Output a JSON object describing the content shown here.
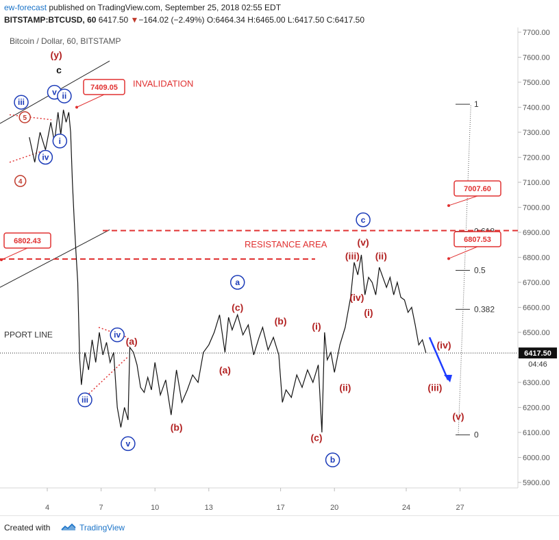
{
  "header": {
    "author": "ew-forecast",
    "published": " published on TradingView.com, September 25, 2018 02:55 EDT",
    "symbol": "BITSTAMP:BTCUSD, 60",
    "last": "6417.50",
    "arrow": "▼",
    "change": "−164.02 (−2.49%)",
    "ohlc": "O:6464.34 H:6465.00 L:6417.50 C:6417.50"
  },
  "footer": {
    "created": "Created with",
    "brand": "TradingView"
  },
  "chart_data": {
    "type": "line",
    "title": "Bitcoin / Dollar, 60, BITSTAMP",
    "xlabel": "",
    "ylabel": "",
    "ylim": [
      5860,
      7720
    ],
    "y_ticks": [
      "5900.00",
      "6000.00",
      "6100.00",
      "6200.00",
      "6300.00",
      "6400.00",
      "6500.00",
      "6600.00",
      "6700.00",
      "6800.00",
      "6900.00",
      "7000.00",
      "7100.00",
      "7200.00",
      "7300.00",
      "7400.00",
      "7500.00",
      "7600.00",
      "7700.00"
    ],
    "x_ticks": [
      "4",
      "7",
      "10",
      "13",
      "17",
      "20",
      "24",
      "27"
    ],
    "grid": false,
    "last_price_label": "6417.50",
    "countdown": "04:46",
    "series": [
      {
        "name": "",
        "x": [
          3.0,
          3.3,
          3.6,
          3.9,
          4.2,
          4.4,
          4.6,
          4.75,
          4.9,
          5.05,
          5.2,
          5.3,
          5.4,
          5.5,
          5.6,
          5.7,
          5.8,
          5.9,
          6.1,
          6.3,
          6.5,
          6.7,
          6.9,
          7.1,
          7.3,
          7.5,
          7.7,
          7.9,
          8.1,
          8.3,
          8.5,
          8.6,
          8.8,
          9.0,
          9.2,
          9.4,
          9.6,
          9.8,
          10.0,
          10.3,
          10.6,
          10.9,
          11.2,
          11.5,
          11.8,
          12.1,
          12.4,
          12.7,
          13.0,
          13.3,
          13.6,
          13.9,
          14.1,
          14.3,
          14.6,
          14.9,
          15.2,
          15.5,
          15.8,
          16.0,
          16.3,
          16.6,
          16.9,
          17.1,
          17.3,
          17.6,
          17.9,
          18.2,
          18.5,
          18.8,
          19.1,
          19.3,
          19.45,
          19.6,
          19.8,
          20.0,
          20.3,
          20.6,
          20.9,
          21.1,
          21.3,
          21.5,
          21.7,
          21.9,
          22.1,
          22.3,
          22.5,
          22.7,
          22.9,
          23.1,
          23.3,
          23.5,
          23.7,
          23.9,
          24.1,
          24.3,
          24.5,
          24.7,
          24.9,
          25.1
        ],
        "values": [
          7280,
          7180,
          7300,
          7230,
          7340,
          7260,
          7380,
          7290,
          7390,
          7340,
          7380,
          7300,
          7100,
          6950,
          6820,
          6700,
          6400,
          6290,
          6420,
          6350,
          6470,
          6380,
          6500,
          6410,
          6460,
          6380,
          6420,
          6200,
          6120,
          6200,
          6150,
          6440,
          6420,
          6370,
          6280,
          6260,
          6320,
          6270,
          6380,
          6250,
          6310,
          6170,
          6350,
          6220,
          6270,
          6330,
          6300,
          6420,
          6450,
          6500,
          6570,
          6420,
          6560,
          6510,
          6570,
          6490,
          6530,
          6410,
          6480,
          6520,
          6430,
          6480,
          6410,
          6220,
          6270,
          6240,
          6330,
          6280,
          6350,
          6300,
          6370,
          6100,
          6500,
          6390,
          6420,
          6340,
          6450,
          6520,
          6640,
          6780,
          6730,
          6810,
          6650,
          6720,
          6700,
          6650,
          6760,
          6720,
          6680,
          6720,
          6650,
          6700,
          6640,
          6630,
          6580,
          6600,
          6530,
          6450,
          6470,
          6417.5
        ]
      }
    ],
    "annotations": {
      "invalidation_box": "7409.05",
      "invalidation_text": "INVALIDATION",
      "box_6802": "6802.43",
      "box_7007": "7007.60",
      "box_6807": "6807.53",
      "resistance_text": "RESISTANCE AREA",
      "support_text": "PPORT LINE",
      "fib_levels": [
        {
          "label": "1",
          "value": 7412
        },
        {
          "label": "0.618",
          "value": 6904
        },
        {
          "label": "0.5",
          "value": 6748
        },
        {
          "label": "0.382",
          "value": 6592
        },
        {
          "label": "0",
          "value": 6090
        }
      ],
      "wave_labels": [
        {
          "text": "(y)",
          "x": 4.5,
          "y": 7610,
          "style": "red"
        },
        {
          "text": "c",
          "x": 4.65,
          "y": 7550,
          "style": "black"
        },
        {
          "text": "v",
          "x": 4.4,
          "y": 7460,
          "style": "blue-circle"
        },
        {
          "text": "ii",
          "x": 4.95,
          "y": 7445,
          "style": "blue-circle"
        },
        {
          "text": "iii",
          "x": 2.55,
          "y": 7420,
          "style": "blue-circle"
        },
        {
          "text": "5",
          "x": 2.75,
          "y": 7360,
          "style": "red-circle"
        },
        {
          "text": "i",
          "x": 4.7,
          "y": 7265,
          "style": "blue-circle"
        },
        {
          "text": "iv",
          "x": 3.9,
          "y": 7200,
          "style": "blue-circle"
        },
        {
          "text": "4",
          "x": 2.5,
          "y": 7105,
          "style": "red-circle"
        },
        {
          "text": "iii",
          "x": 6.1,
          "y": 6230,
          "style": "blue-circle"
        },
        {
          "text": "iv",
          "x": 7.9,
          "y": 6490,
          "style": "blue-circle"
        },
        {
          "text": "(a)",
          "x": 8.7,
          "y": 6465,
          "style": "red"
        },
        {
          "text": "v",
          "x": 8.5,
          "y": 6055,
          "style": "blue-circle"
        },
        {
          "text": "(b)",
          "x": 11.2,
          "y": 6120,
          "style": "red"
        },
        {
          "text": "(a)",
          "x": 13.9,
          "y": 6350,
          "style": "red"
        },
        {
          "text": "a",
          "x": 14.6,
          "y": 6700,
          "style": "blue-circle"
        },
        {
          "text": "(c)",
          "x": 14.6,
          "y": 6600,
          "style": "red"
        },
        {
          "text": "(b)",
          "x": 17.0,
          "y": 6545,
          "style": "red"
        },
        {
          "text": "(i)",
          "x": 19.0,
          "y": 6525,
          "style": "red"
        },
        {
          "text": "(ii)",
          "x": 20.6,
          "y": 6280,
          "style": "red"
        },
        {
          "text": "(c)",
          "x": 19.0,
          "y": 6080,
          "style": "red"
        },
        {
          "text": "b",
          "x": 19.9,
          "y": 5990,
          "style": "blue-circle"
        },
        {
          "text": "c",
          "x": 21.6,
          "y": 6950,
          "style": "blue-circle"
        },
        {
          "text": "(v)",
          "x": 21.6,
          "y": 6860,
          "style": "red"
        },
        {
          "text": "(iii)",
          "x": 21.0,
          "y": 6805,
          "style": "red"
        },
        {
          "text": "(ii)",
          "x": 22.6,
          "y": 6805,
          "style": "red"
        },
        {
          "text": "(iv)",
          "x": 21.25,
          "y": 6640,
          "style": "red"
        },
        {
          "text": "(i)",
          "x": 21.9,
          "y": 6580,
          "style": "red"
        },
        {
          "text": "(iv)",
          "x": 26.1,
          "y": 6450,
          "style": "red"
        },
        {
          "text": "(iii)",
          "x": 25.6,
          "y": 6280,
          "style": "red"
        },
        {
          "text": "(v)",
          "x": 26.9,
          "y": 6165,
          "style": "red"
        }
      ]
    }
  }
}
